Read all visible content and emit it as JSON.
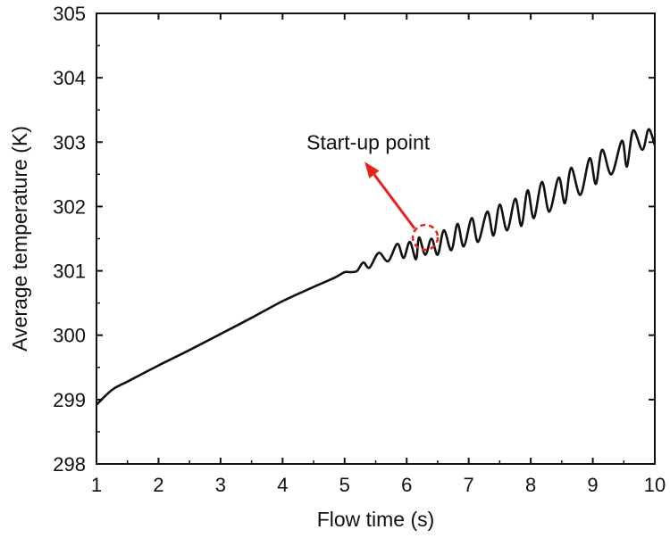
{
  "chart_data": {
    "type": "line",
    "title": "",
    "xlabel": "Flow time (s)",
    "ylabel": "Average temperature (K)",
    "xlim": [
      1,
      10
    ],
    "ylim": [
      298,
      305
    ],
    "xticks": [
      "1",
      "2",
      "3",
      "4",
      "5",
      "6",
      "7",
      "8",
      "9",
      "10"
    ],
    "yticks": [
      "298",
      "299",
      "300",
      "301",
      "302",
      "303",
      "304",
      "305"
    ],
    "grid": false,
    "legend": "none",
    "series": [
      {
        "color": "#111111",
        "x": [
          1.0,
          1.25,
          1.5,
          2.0,
          2.5,
          3.0,
          3.5,
          4.0,
          4.5,
          4.85,
          5.0,
          5.1,
          5.2,
          5.3,
          5.4,
          5.55,
          5.7,
          5.85,
          5.95,
          6.05,
          6.15,
          6.2,
          6.3,
          6.4,
          6.5,
          6.6,
          6.72,
          6.82,
          6.92,
          7.05,
          7.15,
          7.3,
          7.4,
          7.5,
          7.62,
          7.75,
          7.85,
          7.95,
          8.05,
          8.18,
          8.3,
          8.45,
          8.55,
          8.65,
          8.8,
          8.95,
          9.05,
          9.15,
          9.3,
          9.47,
          9.55,
          9.65,
          9.8,
          9.9,
          10.0
        ],
        "y": [
          298.92,
          299.15,
          299.28,
          299.53,
          299.77,
          300.02,
          300.27,
          300.53,
          300.75,
          300.9,
          300.98,
          300.98,
          301.0,
          301.13,
          301.05,
          301.28,
          301.15,
          301.42,
          301.2,
          301.45,
          301.18,
          301.52,
          301.25,
          301.5,
          301.25,
          301.63,
          301.32,
          301.73,
          301.38,
          301.82,
          301.45,
          301.92,
          301.55,
          302.03,
          301.63,
          302.12,
          301.7,
          302.25,
          301.82,
          302.38,
          301.92,
          302.45,
          302.05,
          302.6,
          302.18,
          302.75,
          302.35,
          302.88,
          302.5,
          303.02,
          302.62,
          303.18,
          302.88,
          303.2,
          302.95
        ]
      }
    ],
    "annotation": {
      "text": "Start-up point",
      "marker_x": 6.3,
      "marker_y": 301.52,
      "text_x": 5.38,
      "text_y": 303.0,
      "arrow_color": "#e8231f"
    }
  }
}
